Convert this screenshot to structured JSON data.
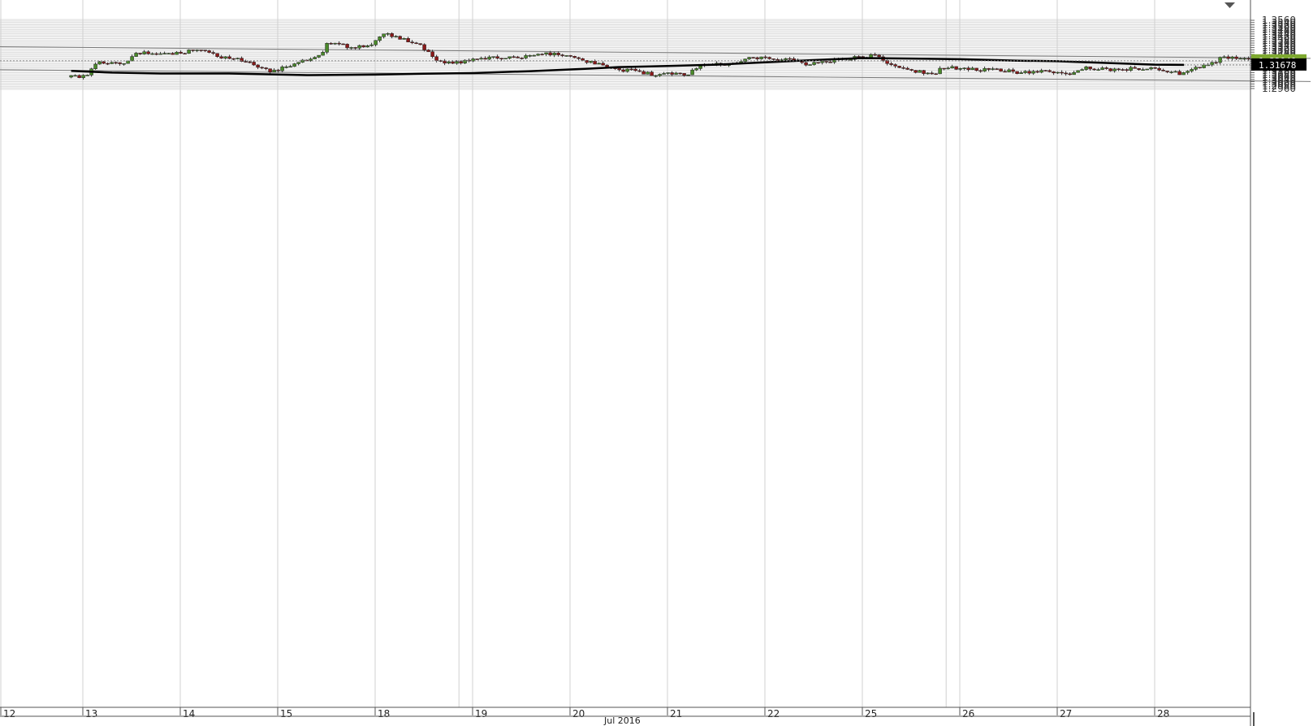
{
  "chart_data": {
    "type": "candlestick",
    "xaxis": {
      "day_labels": [
        "12",
        "13",
        "14",
        "15",
        "18",
        "19",
        "20",
        "21",
        "22",
        "25",
        "26",
        "27",
        "28"
      ],
      "month_label": "Jul 2016"
    },
    "yaxis": {
      "range": [
        1.2945,
        1.3575
      ],
      "ticks": [
        "1.3560",
        "1.3540",
        "1.3520",
        "1.3500",
        "1.3480",
        "1.3460",
        "1.3440",
        "1.3420",
        "1.3400",
        "1.3380",
        "1.3360",
        "1.3340",
        "1.3320",
        "1.3300",
        "1.3280",
        "1.3260",
        "1.3240",
        "1.3220",
        "1.3200",
        "1.3180",
        "1.3160",
        "1.3140",
        "1.3120",
        "1.3100",
        "1.3080",
        "1.3060",
        "1.3040",
        "1.3020",
        "1.3000",
        "1.2980",
        "1.2960"
      ]
    },
    "current_price": "1.32040",
    "moving_average_value": "1.31678",
    "grid": true,
    "trendlines": [
      {
        "name": "upper-channel",
        "start": {
          "day": 0,
          "value": 1.3328
        },
        "end": {
          "day": 12.6,
          "value": 1.3225
        }
      },
      {
        "name": "lower-channel",
        "start": {
          "day": 0,
          "value": 1.3125
        },
        "end": {
          "day": 12.6,
          "value": 1.3022
        }
      }
    ],
    "moving_average": [
      [
        -0.12,
        1.3115
      ],
      [
        0.3,
        1.31
      ],
      [
        0.8,
        1.3092
      ],
      [
        1.5,
        1.3092
      ],
      [
        2.3,
        1.3078
      ],
      [
        3.0,
        1.3082
      ],
      [
        3.5,
        1.309
      ],
      [
        4.0,
        1.3096
      ],
      [
        4.6,
        1.3113
      ],
      [
        5.2,
        1.3135
      ],
      [
        5.5,
        1.3148
      ],
      [
        6.0,
        1.3158
      ],
      [
        6.5,
        1.317
      ],
      [
        7.0,
        1.319
      ],
      [
        7.5,
        1.321
      ],
      [
        8.0,
        1.3228
      ],
      [
        8.4,
        1.3224
      ],
      [
        9.0,
        1.3218
      ],
      [
        9.6,
        1.3205
      ],
      [
        10.0,
        1.32
      ],
      [
        10.5,
        1.3185
      ],
      [
        11.0,
        1.317
      ],
      [
        11.3,
        1.3168
      ]
    ],
    "anchors": [
      [
        -0.12,
        1.306
      ],
      [
        0.05,
        1.308
      ],
      [
        0.15,
        1.3185
      ],
      [
        0.4,
        1.317
      ],
      [
        0.55,
        1.327
      ],
      [
        1.0,
        1.327
      ],
      [
        1.2,
        1.331
      ],
      [
        1.4,
        1.324
      ],
      [
        1.7,
        1.32
      ],
      [
        1.9,
        1.311
      ],
      [
        2.0,
        1.312
      ],
      [
        2.2,
        1.319
      ],
      [
        2.45,
        1.325
      ],
      [
        2.5,
        1.337
      ],
      [
        2.75,
        1.3325
      ],
      [
        2.95,
        1.3345
      ],
      [
        3.1,
        1.3455
      ],
      [
        3.25,
        1.34
      ],
      [
        3.45,
        1.3355
      ],
      [
        3.6,
        1.323
      ],
      [
        3.75,
        1.318
      ],
      [
        3.95,
        1.32
      ],
      [
        4.1,
        1.323
      ],
      [
        4.5,
        1.324
      ],
      [
        4.75,
        1.327
      ],
      [
        5.0,
        1.324
      ],
      [
        5.15,
        1.32
      ],
      [
        5.4,
        1.315
      ],
      [
        5.5,
        1.312
      ],
      [
        5.6,
        1.3125
      ],
      [
        5.85,
        1.3085
      ],
      [
        6.2,
        1.3085
      ],
      [
        6.35,
        1.317
      ],
      [
        6.6,
        1.3175
      ],
      [
        6.75,
        1.3185
      ],
      [
        6.85,
        1.323
      ],
      [
        7.1,
        1.3215
      ],
      [
        7.25,
        1.323
      ],
      [
        7.4,
        1.3175
      ],
      [
        7.7,
        1.321
      ],
      [
        7.95,
        1.3235
      ],
      [
        8.15,
        1.325
      ],
      [
        8.35,
        1.314
      ],
      [
        8.5,
        1.311
      ],
      [
        8.75,
        1.31
      ],
      [
        8.85,
        1.315
      ],
      [
        9.1,
        1.313
      ],
      [
        9.5,
        1.3115
      ],
      [
        9.6,
        1.31
      ],
      [
        9.9,
        1.312
      ],
      [
        10.1,
        1.3085
      ],
      [
        10.3,
        1.314
      ],
      [
        10.55,
        1.3125
      ],
      [
        10.85,
        1.314
      ],
      [
        11.1,
        1.312
      ],
      [
        11.25,
        1.309
      ],
      [
        11.4,
        1.3135
      ],
      [
        11.55,
        1.316
      ],
      [
        11.7,
        1.3235
      ],
      [
        11.95,
        1.322
      ],
      [
        12.1,
        1.318
      ],
      [
        12.25,
        1.321
      ]
    ],
    "seed": 20160728
  }
}
